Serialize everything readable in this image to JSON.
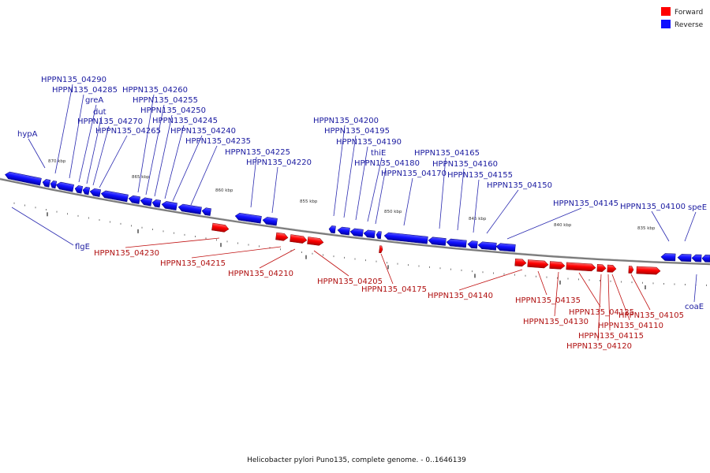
{
  "legend": {
    "forward": {
      "label": "Forward",
      "color": "#ff0000"
    },
    "reverse": {
      "label": "Reverse",
      "color": "#1010ff"
    }
  },
  "caption": "Helicobacter pylori Puno135, complete genome. - 0..1646139",
  "scale_labels": [
    "870 kbp",
    "865 kbp",
    "860 kbp",
    "855 kbp",
    "850 kbp",
    "845 kbp",
    "840 kbp",
    "835 kbp"
  ],
  "reverse_genes": [
    "hypA",
    "HPPN135_04290",
    "HPPN135_04285",
    "greA",
    "dut",
    "HPPN135_04270",
    "HPPN135_04265",
    "HPPN135_04260",
    "HPPN135_04255",
    "HPPN135_04250",
    "HPPN135_04245",
    "HPPN135_04240",
    "HPPN135_04235",
    "HPPN135_04225",
    "HPPN135_04220",
    "HPPN135_04200",
    "HPPN135_04195",
    "HPPN135_04190",
    "thiE",
    "HPPN135_04180",
    "HPPN135_04170",
    "HPPN135_04165",
    "HPPN135_04160",
    "HPPN135_04155",
    "HPPN135_04150",
    "HPPN135_04145",
    "HPPN135_04100",
    "speE",
    "flgE",
    "coaE"
  ],
  "forward_genes": [
    "HPPN135_04230",
    "HPPN135_04215",
    "HPPN135_04210",
    "HPPN135_04205",
    "HPPN135_04175",
    "HPPN135_04140",
    "HPPN135_04135",
    "HPPN135_04130",
    "HPPN135_04125",
    "HPPN135_04120",
    "HPPN135_04115",
    "HPPN135_04110",
    "HPPN135_04105"
  ]
}
